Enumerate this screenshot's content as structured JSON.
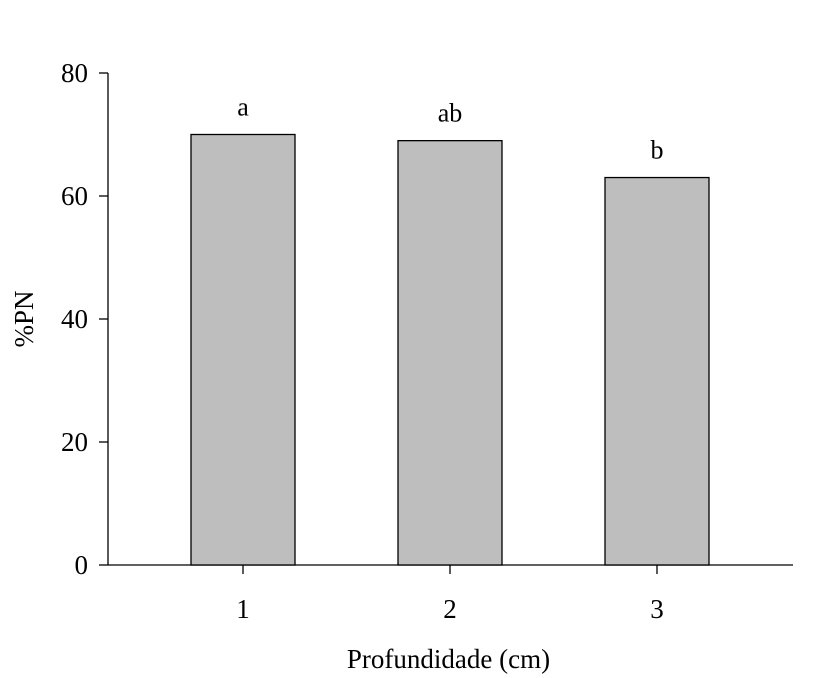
{
  "chart_data": {
    "type": "bar",
    "categories": [
      "1",
      "2",
      "3"
    ],
    "values": [
      70,
      69,
      63
    ],
    "data_labels": [
      "a",
      "ab",
      "b"
    ],
    "xlabel": "Profundidade (cm)",
    "ylabel": "%PN",
    "ylim": [
      0,
      80
    ],
    "yticks": [
      "0",
      "20",
      "40",
      "60",
      "80"
    ],
    "grid": false,
    "colors": {
      "bar_fill": "#bebebe",
      "bar_edge": "#000000"
    }
  }
}
